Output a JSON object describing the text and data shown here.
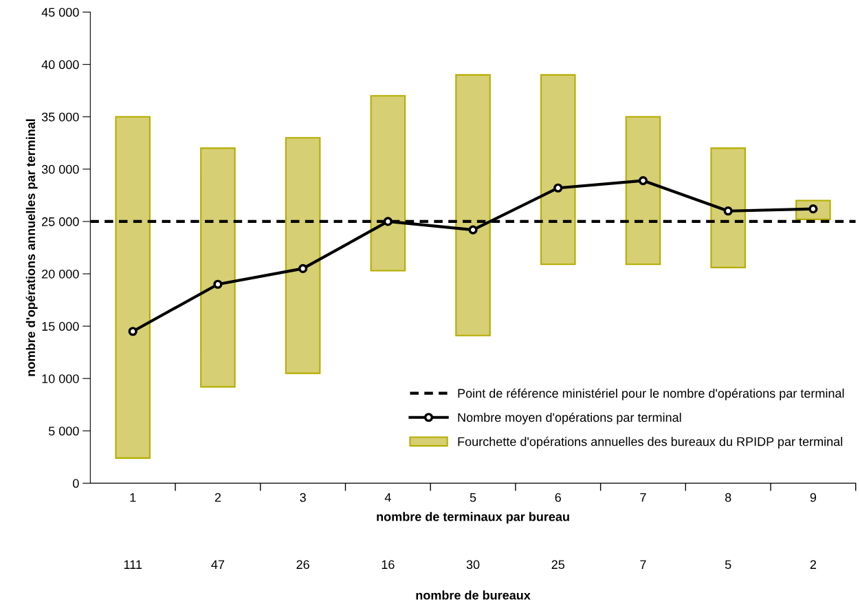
{
  "chart_data": {
    "type": "bar",
    "xlabel": "nombre de terminaux par bureau",
    "ylabel": "nombre d'opérations annuelles par terminal",
    "categories": [
      "1",
      "2",
      "3",
      "4",
      "5",
      "6",
      "7",
      "8",
      "9"
    ],
    "series": [
      {
        "name": "Fourchette d'opérations annuelles des bureaux du RPIDP par terminal",
        "color": "#d6cf73",
        "base": [
          2400,
          9200,
          10500,
          20300,
          14100,
          20900,
          20900,
          20600,
          25200
        ],
        "values": [
          32600,
          22800,
          22500,
          16700,
          24900,
          18100,
          14100,
          11400,
          1800
        ]
      },
      {
        "name": "Nombre moyen d'opérations par terminal",
        "type": "line",
        "color": "#000000",
        "marker": "circle",
        "values": [
          14500,
          19000,
          20500,
          25000,
          24200,
          28200,
          28900,
          26000,
          26200
        ]
      }
    ],
    "ref_lines": [
      {
        "axis": "y",
        "value": 25000,
        "label": "Point de référence ministériel pour le nombre d'opérations par terminal",
        "color": "#000000",
        "line_style": "dashed"
      }
    ],
    "ylim": [
      0,
      45000
    ],
    "yticks": [
      0,
      {
        "value": 5000,
        "label": "5 000"
      },
      {
        "value": 10000,
        "label": "10 000"
      },
      {
        "value": 15000,
        "label": "15 000"
      },
      {
        "value": 20000,
        "label": "20 000"
      },
      {
        "value": 25000,
        "label": "25 000"
      },
      {
        "value": 30000,
        "label": "30 000"
      },
      {
        "value": 35000,
        "label": "35 000"
      },
      {
        "value": 40000,
        "label": "40 000"
      },
      {
        "value": 45000,
        "label": "45 000"
      }
    ],
    "annotations": [
      "111",
      "47",
      "26",
      "16",
      "30",
      "25",
      "7",
      "5",
      "2",
      "nombre de bureaux"
    ],
    "legend": "bottom right",
    "grid": false
  }
}
